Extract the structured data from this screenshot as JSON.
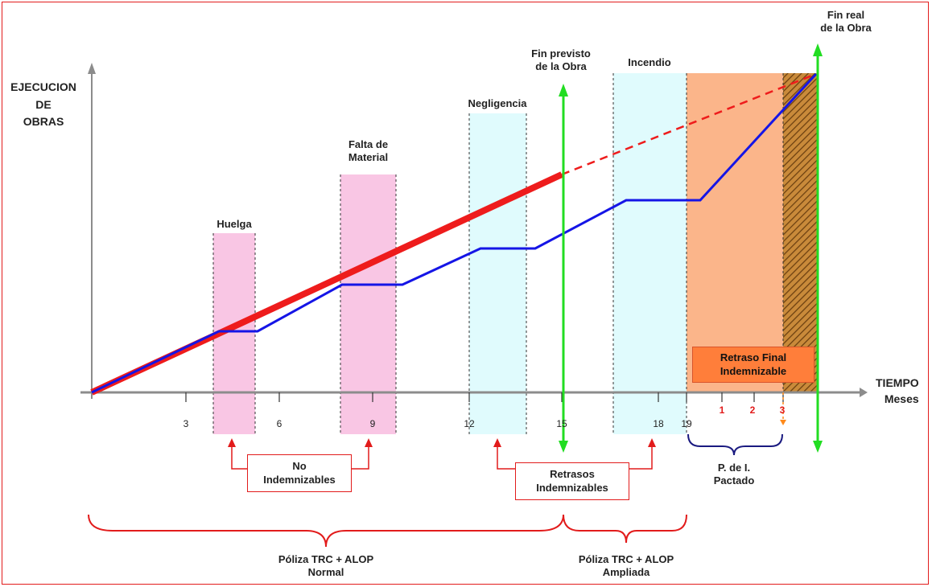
{
  "y_axis_label": [
    "EJECUCION",
    "DE",
    "OBRAS"
  ],
  "x_axis_label": [
    "TIEMPO",
    "Meses"
  ],
  "ticks": [
    "3",
    "6",
    "9",
    "12",
    "15",
    "18",
    "19"
  ],
  "pi_ticks": [
    "1",
    "2",
    "3"
  ],
  "events": {
    "huelga": "Huelga",
    "falta": [
      "Falta de",
      "Material"
    ],
    "negligencia": "Negligencia",
    "incendio": "Incendio",
    "fin_previsto": [
      "Fin previsto",
      "de la Obra"
    ],
    "fin_real": [
      "Fin real",
      "de la Obra"
    ]
  },
  "boxes": {
    "no_indemnizables": [
      "No",
      "Indemnizables"
    ],
    "retrasos_indemnizables": [
      "Retrasos",
      "Indemnizables"
    ],
    "retraso_final": [
      "Retraso Final",
      "Indemnizable"
    ]
  },
  "periodo": [
    "P. de I.",
    "Pactado"
  ],
  "polizas": {
    "normal": [
      "Póliza TRC + ALOP",
      "Normal"
    ],
    "ampliada": [
      "Póliza TRC + ALOP",
      "Ampliada"
    ]
  },
  "colors": {
    "planned": "#ee1c1c",
    "actual": "#1515e6",
    "deadline": "#22dd22",
    "non_indemnizable_band": "#f9c6e4",
    "indemnizable_band": "#e0fbfd",
    "pi_zone": "#fbb58a",
    "hatch": "#8a5a1a",
    "border": "#e21b1b",
    "bracket": "#1a1a80"
  }
}
